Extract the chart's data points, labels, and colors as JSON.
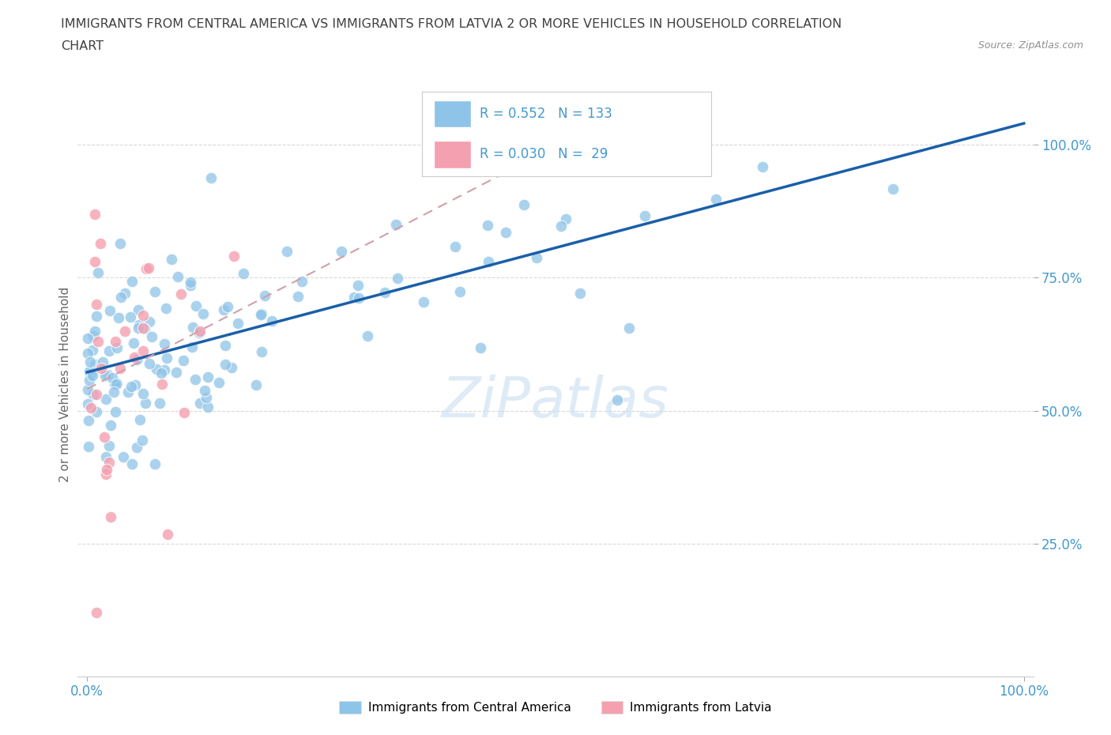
{
  "title_line1": "IMMIGRANTS FROM CENTRAL AMERICA VS IMMIGRANTS FROM LATVIA 2 OR MORE VEHICLES IN HOUSEHOLD CORRELATION",
  "title_line2": "CHART",
  "source": "Source: ZipAtlas.com",
  "ylabel": "2 or more Vehicles in Household",
  "watermark": "ZiPatlas",
  "R_blue": 0.552,
  "N_blue": 133,
  "R_pink": 0.03,
  "N_pink": 29,
  "blue_color": "#8ec4e8",
  "pink_color": "#f4a0b0",
  "line_blue": "#1a5fa8",
  "line_pink": "#d0a0a8",
  "background_color": "#ffffff",
  "title_color": "#404040",
  "source_color": "#909090",
  "tick_color": "#4499cc",
  "ylabel_color": "#666666",
  "watermark_color": "#c8dff0",
  "legend_box_color": "#f0f0f8",
  "legend_border_color": "#cccccc"
}
